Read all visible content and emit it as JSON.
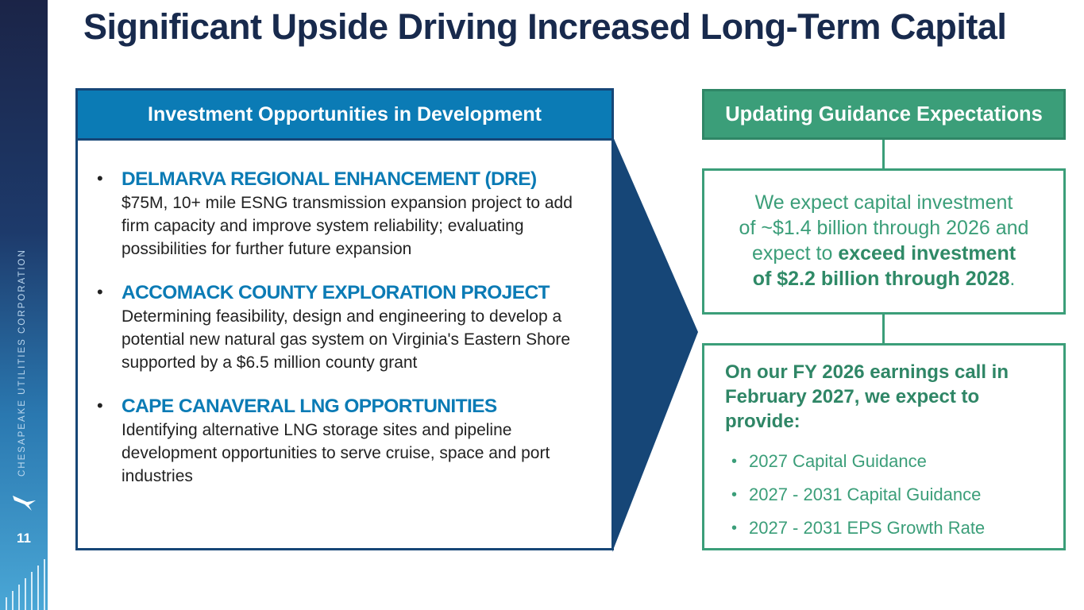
{
  "sidebar": {
    "company_name": "CHESAPEAKE UTILITIES CORPORATION",
    "page_number": "11",
    "logo_icon": "bird-logo-icon"
  },
  "title": "Significant Upside Driving Increased Long-Term Capital",
  "left_panel": {
    "header": "Investment Opportunities in Development",
    "items": [
      {
        "title": "DELMARVA REGIONAL ENHANCEMENT (DRE)",
        "description": "$75M, 10+ mile ESNG transmission expansion project to add firm capacity and improve system reliability; evaluating possibilities for further future expansion"
      },
      {
        "title": "ACCOMACK COUNTY EXPLORATION PROJECT",
        "description": "Determining feasibility, design and engineering to develop a potential new natural gas system on Virginia's Eastern Shore supported by a $6.5 million county grant"
      },
      {
        "title": "CAPE CANAVERAL LNG OPPORTUNITIES",
        "description": "Identifying alternative LNG storage sites and pipeline development opportunities to serve cruise, space and port industries"
      }
    ]
  },
  "right_panel": {
    "header": "Updating Guidance Expectations",
    "expectation": {
      "line1": "We expect capital investment",
      "line2": "of ~$1.4 billion through 2026 and",
      "line3_plain": "expect to ",
      "line3_bold": "exceed investment",
      "line4_bold": "of $2.2 billion through 2028",
      "line4_end": "."
    },
    "future": {
      "heading": "On our FY 2026 earnings call in February 2027, we expect to provide:",
      "items": [
        "2027 Capital Guidance",
        "2027 - 2031 Capital Guidance",
        "2027 - 2031 EPS Growth Rate"
      ]
    }
  },
  "colors": {
    "navy": "#182a4d",
    "blue": "#0b7bb5",
    "dark_blue": "#164677",
    "green": "#3b9e79"
  }
}
